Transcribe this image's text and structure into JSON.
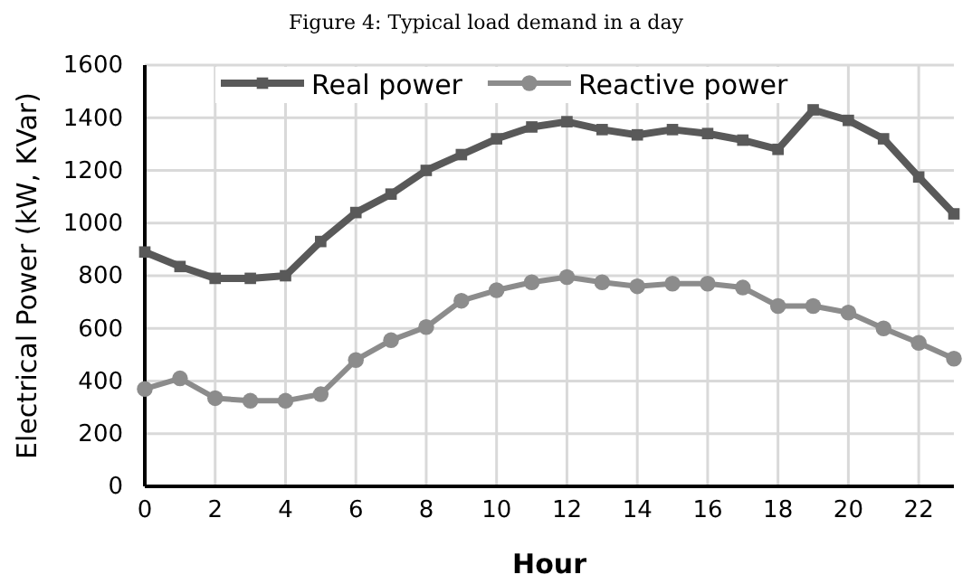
{
  "chart_data": {
    "type": "line",
    "title": "Figure 4: Typical load demand in a day",
    "xlabel": "Hour",
    "ylabel": "Electrical Power (kW, KVar)",
    "x": [
      0,
      1,
      2,
      3,
      4,
      5,
      6,
      7,
      8,
      9,
      10,
      11,
      12,
      13,
      14,
      15,
      16,
      17,
      18,
      19,
      20,
      21,
      22,
      23
    ],
    "series": [
      {
        "name": "Real power",
        "color": "#595959",
        "marker": "square",
        "values": [
          890,
          835,
          790,
          790,
          800,
          930,
          1040,
          1110,
          1200,
          1260,
          1320,
          1365,
          1385,
          1355,
          1335,
          1355,
          1340,
          1315,
          1280,
          1430,
          1390,
          1320,
          1175,
          1035
        ]
      },
      {
        "name": "Reactive power",
        "color": "#8c8c8c",
        "marker": "circle",
        "values": [
          370,
          410,
          335,
          325,
          325,
          350,
          480,
          555,
          605,
          705,
          745,
          775,
          795,
          775,
          760,
          770,
          770,
          755,
          685,
          685,
          660,
          600,
          545,
          485
        ]
      }
    ],
    "xlim": [
      0,
      23
    ],
    "xticks": [
      0,
      2,
      4,
      6,
      8,
      10,
      12,
      14,
      16,
      18,
      20,
      22
    ],
    "ylim": [
      0,
      1600
    ],
    "yticks": [
      0,
      200,
      400,
      600,
      800,
      1000,
      1200,
      1400,
      1600
    ],
    "grid": true,
    "legend": "top",
    "line_style": "solid"
  }
}
